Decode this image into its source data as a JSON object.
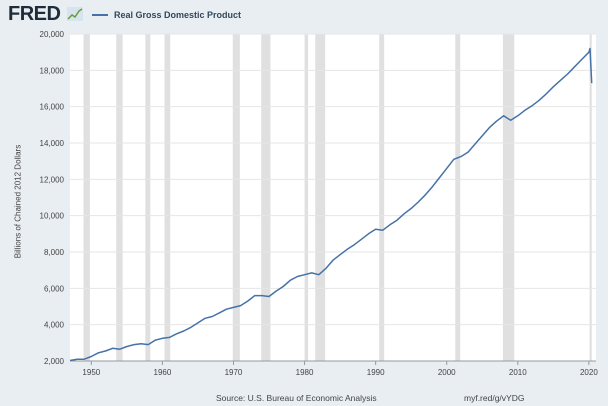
{
  "header": {
    "logo_text": "FRED",
    "logo_icon": "line-chart-icon"
  },
  "footer": {
    "source": "Source: U.S. Bureau of Economic Analysis",
    "link": "myf.red/g/vYDG"
  },
  "colors": {
    "line": "#4572a7",
    "recession": "#e0e0e0",
    "plot_bg": "#ffffff",
    "page_bg": "#e9eef2"
  },
  "chart_data": {
    "type": "line",
    "title": "",
    "xlabel": "",
    "ylabel": "Billions of Chained 2012 Dollars",
    "xlim": [
      1947,
      2021
    ],
    "ylim": [
      2000,
      20000
    ],
    "x_ticks": [
      1950,
      1960,
      1970,
      1980,
      1990,
      2000,
      2010,
      2020
    ],
    "x_tick_labels": [
      "1950",
      "1960",
      "1970",
      "1980",
      "1990",
      "2000",
      "2010",
      "2020"
    ],
    "y_ticks": [
      2000,
      4000,
      6000,
      8000,
      10000,
      12000,
      14000,
      16000,
      18000,
      20000
    ],
    "y_tick_labels": [
      "2,000",
      "4,000",
      "6,000",
      "8,000",
      "10,000",
      "12,000",
      "14,000",
      "16,000",
      "18,000",
      "20,000"
    ],
    "grid": true,
    "legend": "top-left",
    "recessions": [
      [
        1948.9,
        1949.8
      ],
      [
        1953.5,
        1954.4
      ],
      [
        1957.6,
        1958.3
      ],
      [
        1960.3,
        1961.1
      ],
      [
        1969.9,
        1970.9
      ],
      [
        1973.9,
        1975.2
      ],
      [
        1980.0,
        1980.5
      ],
      [
        1981.5,
        1982.9
      ],
      [
        1990.5,
        1991.2
      ],
      [
        2001.2,
        2001.9
      ],
      [
        2007.9,
        2009.5
      ],
      [
        2020.1,
        2020.4
      ]
    ],
    "series": [
      {
        "name": "Real Gross Domestic Product",
        "x": [
          1947,
          1948,
          1949,
          1950,
          1951,
          1952,
          1953,
          1954,
          1955,
          1956,
          1957,
          1958,
          1959,
          1960,
          1961,
          1962,
          1963,
          1964,
          1965,
          1966,
          1967,
          1968,
          1969,
          1970,
          1971,
          1972,
          1973,
          1974,
          1975,
          1976,
          1977,
          1978,
          1979,
          1980,
          1981,
          1982,
          1983,
          1984,
          1985,
          1986,
          1987,
          1988,
          1989,
          1990,
          1991,
          1992,
          1993,
          1994,
          1995,
          1996,
          1997,
          1998,
          1999,
          2000,
          2001,
          2002,
          2003,
          2004,
          2005,
          2006,
          2007,
          2008,
          2009,
          2010,
          2011,
          2012,
          2013,
          2014,
          2015,
          2016,
          2017,
          2018,
          2019,
          2020,
          2020.15,
          2020.4
        ],
        "y": [
          2030,
          2100,
          2100,
          2250,
          2450,
          2550,
          2700,
          2650,
          2800,
          2900,
          2950,
          2900,
          3150,
          3250,
          3300,
          3500,
          3650,
          3850,
          4100,
          4350,
          4450,
          4650,
          4850,
          4950,
          5050,
          5300,
          5600,
          5600,
          5550,
          5850,
          6100,
          6450,
          6650,
          6750,
          6850,
          6750,
          7100,
          7550,
          7850,
          8150,
          8400,
          8700,
          9000,
          9250,
          9200,
          9500,
          9750,
          10100,
          10400,
          10750,
          11150,
          11600,
          12100,
          12600,
          13100,
          13250,
          13500,
          13950,
          14400,
          14850,
          15200,
          15500,
          15250,
          15500,
          15800,
          16050,
          16350,
          16700,
          17100,
          17450,
          17800,
          18200,
          18600,
          19000,
          19200,
          17300
        ]
      }
    ]
  }
}
